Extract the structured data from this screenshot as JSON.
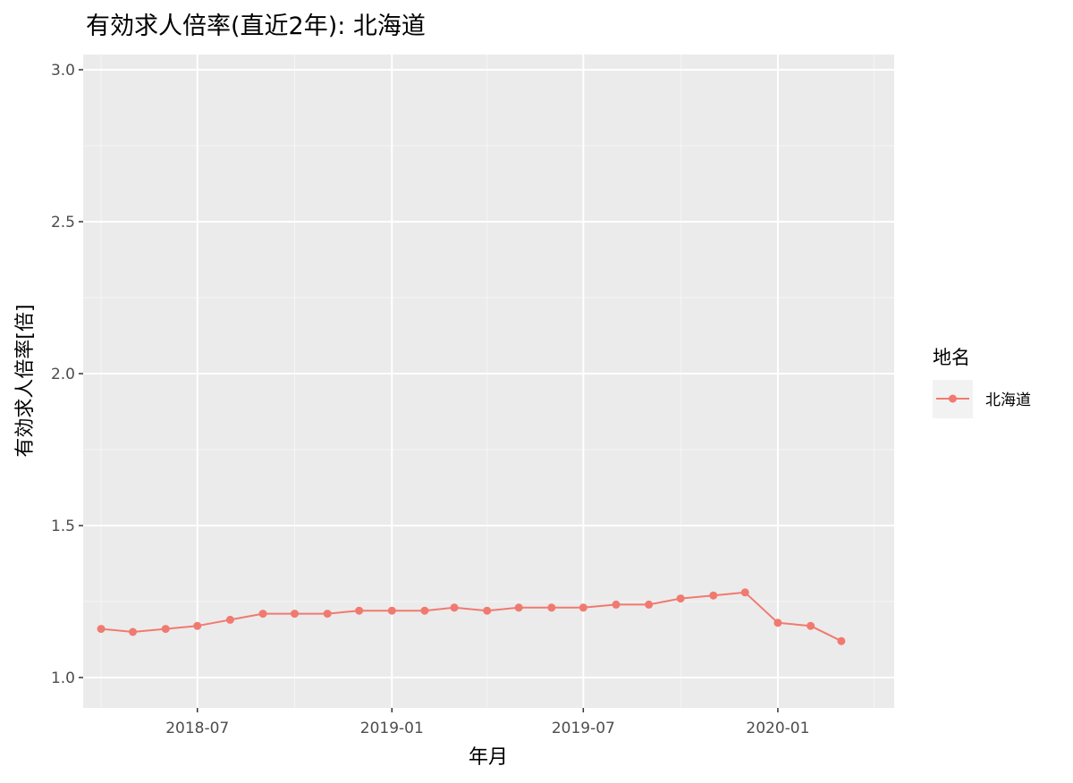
{
  "colors": {
    "panel_background": "#ebebeb",
    "grid_major": "#ffffff",
    "grid_minor": "#f5f5f5",
    "series_color": "#f07a70",
    "tick_color": "#333333",
    "tick_label": "#4d4d4d"
  },
  "chart_data": {
    "type": "line",
    "title": "有効求人倍率(直近2年): 北海道",
    "xlabel": "年月",
    "ylabel": "有効求人倍率[倍]",
    "ylim": [
      0.9,
      3.05
    ],
    "xlim": [
      "2018-03-15",
      "2020-04-20"
    ],
    "y_ticks": [
      1.0,
      1.5,
      2.0,
      2.5,
      3.0
    ],
    "y_tick_labels": [
      "1.0",
      "1.5",
      "2.0",
      "2.5",
      "3.0"
    ],
    "x_ticks": [
      "2018-07-01",
      "2019-01-01",
      "2019-07-01",
      "2020-01-01"
    ],
    "x_tick_labels": [
      "2018-07",
      "2019-01",
      "2019-07",
      "2020-01"
    ],
    "x_minor_ticks": [
      "2018-04-01",
      "2018-10-01",
      "2019-04-01",
      "2019-10-01",
      "2020-04-01"
    ],
    "grid": true,
    "legend": {
      "title": "地名",
      "placement": "right"
    },
    "series": [
      {
        "name": "北海道",
        "marker": "circle",
        "x": [
          "2018-04-01",
          "2018-05-01",
          "2018-06-01",
          "2018-07-01",
          "2018-08-01",
          "2018-09-01",
          "2018-10-01",
          "2018-11-01",
          "2018-12-01",
          "2019-01-01",
          "2019-02-01",
          "2019-03-01",
          "2019-04-01",
          "2019-05-01",
          "2019-06-01",
          "2019-07-01",
          "2019-08-01",
          "2019-09-01",
          "2019-10-01",
          "2019-11-01",
          "2019-12-01",
          "2020-01-01",
          "2020-02-01",
          "2020-03-01"
        ],
        "y": [
          1.16,
          1.15,
          1.16,
          1.17,
          1.19,
          1.21,
          1.21,
          1.21,
          1.22,
          1.22,
          1.22,
          1.23,
          1.22,
          1.23,
          1.23,
          1.23,
          1.24,
          1.24,
          1.26,
          1.27,
          1.28,
          1.18,
          1.17,
          1.12
        ]
      }
    ]
  }
}
